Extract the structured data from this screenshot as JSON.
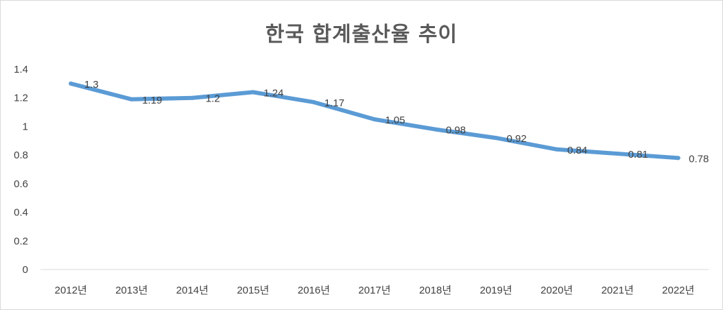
{
  "chart_data": {
    "type": "line",
    "title": "한국 합계출산율 추이",
    "xlabel": "",
    "ylabel": "",
    "categories": [
      "2012년",
      "2013년",
      "2014년",
      "2015년",
      "2016년",
      "2017년",
      "2018년",
      "2019년",
      "2020년",
      "2021년",
      "2022년"
    ],
    "series": [
      {
        "values": [
          1.3,
          1.19,
          1.2,
          1.24,
          1.17,
          1.05,
          0.98,
          0.92,
          0.84,
          0.81,
          0.78
        ],
        "data_labels": [
          "1.3",
          "1.19",
          "1.2",
          "1.24",
          "1.17",
          "1.05",
          "0.98",
          "0.92",
          "0.84",
          "0.81",
          "0.78"
        ],
        "color": "#5b9bd5"
      }
    ],
    "ylim": [
      0,
      1.4
    ],
    "yticks": [
      0,
      0.2,
      0.4,
      0.6,
      0.8,
      1,
      1.2,
      1.4
    ],
    "ytick_labels": [
      "0",
      "0.2",
      "0.4",
      "0.6",
      "0.8",
      "1",
      "1.2",
      "1.4"
    ],
    "grid": false,
    "legend": "none"
  },
  "colors": {
    "line": "#5b9bd5",
    "axis": "#d9d9d9",
    "text": "#404040",
    "title": "#595959"
  }
}
